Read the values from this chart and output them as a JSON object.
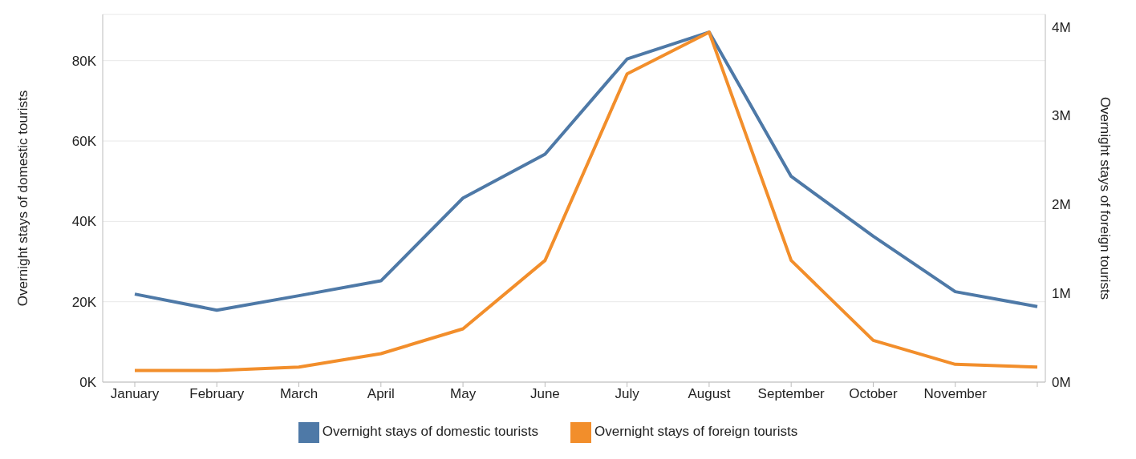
{
  "chart_data": {
    "type": "line",
    "categories": [
      "January",
      "February",
      "March",
      "April",
      "May",
      "June",
      "July",
      "August",
      "September",
      "October",
      "November",
      null
    ],
    "series": [
      {
        "name": "Overnight stays of domestic tourists",
        "color": "#4e79a7",
        "values": [
          21900,
          17900,
          21500,
          25200,
          45800,
          56700,
          80400,
          87100,
          51200,
          36300,
          22500,
          18800
        ]
      },
      {
        "name": "Overnight stays of foreign tourists",
        "color": "#f28e2b",
        "axis": "y2",
        "values": [
          130000,
          130000,
          170000,
          320000,
          600000,
          1370000,
          3470000,
          3940000,
          1370000,
          470000,
          200000,
          170000
        ]
      }
    ],
    "ylabel": "Overnight stays of domestic tourists",
    "y2label": "Overnight stays of foreign tourists",
    "ylim": [
      0,
      91500
    ],
    "yticks": [
      {
        "value": 0,
        "label": "0K"
      },
      {
        "value": 20000,
        "label": "20K"
      },
      {
        "value": 40000,
        "label": "40K"
      },
      {
        "value": 60000,
        "label": "60K"
      },
      {
        "value": 80000,
        "label": "80K"
      }
    ],
    "y2lim": [
      0,
      4140000
    ],
    "y2ticks": [
      {
        "value": 0,
        "label": "0M"
      },
      {
        "value": 1000000,
        "label": "1M"
      },
      {
        "value": 2000000,
        "label": "2M"
      },
      {
        "value": 3000000,
        "label": "3M"
      },
      {
        "value": 4000000,
        "label": "4M"
      }
    ],
    "grid": "y",
    "legend": "bottom",
    "marker": "none",
    "line_style": "solid"
  }
}
